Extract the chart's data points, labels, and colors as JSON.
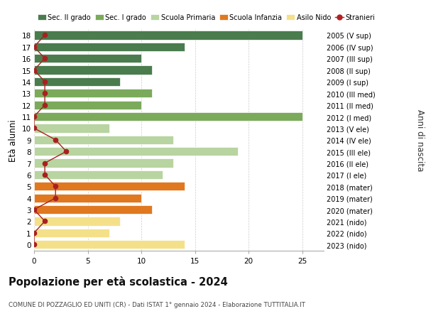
{
  "ages": [
    18,
    17,
    16,
    15,
    14,
    13,
    12,
    11,
    10,
    9,
    8,
    7,
    6,
    5,
    4,
    3,
    2,
    1,
    0
  ],
  "right_labels": [
    "2005 (V sup)",
    "2006 (IV sup)",
    "2007 (III sup)",
    "2008 (II sup)",
    "2009 (I sup)",
    "2010 (III med)",
    "2011 (II med)",
    "2012 (I med)",
    "2013 (V ele)",
    "2014 (IV ele)",
    "2015 (III ele)",
    "2016 (II ele)",
    "2017 (I ele)",
    "2018 (mater)",
    "2019 (mater)",
    "2020 (mater)",
    "2021 (nido)",
    "2022 (nido)",
    "2023 (nido)"
  ],
  "bar_values": [
    25,
    14,
    10,
    11,
    8,
    11,
    10,
    25,
    7,
    13,
    19,
    13,
    12,
    14,
    10,
    11,
    8,
    7,
    14
  ],
  "bar_colors": [
    "#4a7c4e",
    "#4a7c4e",
    "#4a7c4e",
    "#4a7c4e",
    "#4a7c4e",
    "#7aaa5a",
    "#7aaa5a",
    "#7aaa5a",
    "#b8d4a0",
    "#b8d4a0",
    "#b8d4a0",
    "#b8d4a0",
    "#b8d4a0",
    "#e07820",
    "#e07820",
    "#e07820",
    "#f5e08a",
    "#f5e08a",
    "#f5e08a"
  ],
  "stranieri_values": [
    1,
    0,
    1,
    0,
    1,
    1,
    1,
    0,
    0,
    2,
    3,
    1,
    1,
    2,
    2,
    0,
    1,
    0,
    0
  ],
  "title": "Popolazione per età scolastica - 2024",
  "subtitle": "COMUNE DI POZZAGLIO ED UNITI (CR) - Dati ISTAT 1° gennaio 2024 - Elaborazione TUTTITALIA.IT",
  "ylabel_left": "Età alunni",
  "ylabel_right": "Anni di nascita",
  "xticks": [
    0,
    5,
    10,
    15,
    20,
    25
  ],
  "xlim": [
    0,
    27
  ],
  "legend_labels": [
    "Sec. II grado",
    "Sec. I grado",
    "Scuola Primaria",
    "Scuola Infanzia",
    "Asilo Nido",
    "Stranieri"
  ],
  "legend_colors": [
    "#4a7c4e",
    "#7aaa5a",
    "#b8d4a0",
    "#e07820",
    "#f5e08a",
    "#b22020"
  ],
  "bar_height": 0.75,
  "bg_color": "#ffffff",
  "grid_color": "#cccccc"
}
